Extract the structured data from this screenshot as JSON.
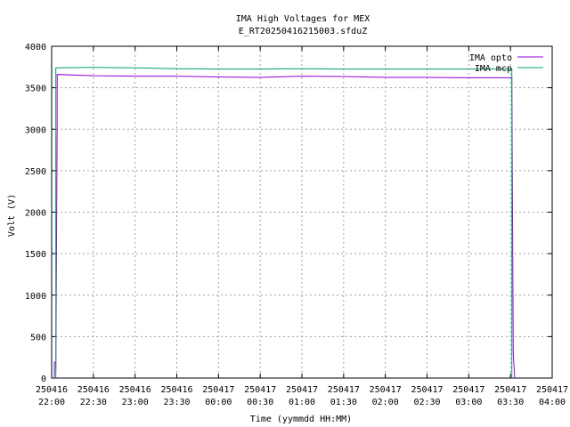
{
  "chart_data": {
    "type": "line",
    "title": "IMA High Voltages for MEX",
    "subtitle": "E_RT20250416215003.sfduZ",
    "xlabel": "Time (yymmdd HH:MM)",
    "ylabel": "Volt (V)",
    "xlim": [
      "2025-04-16 22:00",
      "2025-04-17 04:00"
    ],
    "ylim": [
      0,
      4000
    ],
    "grid": true,
    "legend_position": "top-right",
    "y_ticks": [
      0,
      500,
      1000,
      1500,
      2000,
      2500,
      3000,
      3500,
      4000
    ],
    "x_ticks": [
      {
        "date": "250416",
        "time": "22:00",
        "t": "2025-04-16 22:00"
      },
      {
        "date": "250416",
        "time": "22:30",
        "t": "2025-04-16 22:30"
      },
      {
        "date": "250416",
        "time": "23:00",
        "t": "2025-04-16 23:00"
      },
      {
        "date": "250416",
        "time": "23:30",
        "t": "2025-04-16 23:30"
      },
      {
        "date": "250417",
        "time": "00:00",
        "t": "2025-04-17 00:00"
      },
      {
        "date": "250417",
        "time": "00:30",
        "t": "2025-04-17 00:30"
      },
      {
        "date": "250417",
        "time": "01:00",
        "t": "2025-04-17 01:00"
      },
      {
        "date": "250417",
        "time": "01:30",
        "t": "2025-04-17 01:30"
      },
      {
        "date": "250417",
        "time": "02:00",
        "t": "2025-04-17 02:00"
      },
      {
        "date": "250417",
        "time": "02:30",
        "t": "2025-04-17 02:30"
      },
      {
        "date": "250417",
        "time": "03:00",
        "t": "2025-04-17 03:00"
      },
      {
        "date": "250417",
        "time": "03:30",
        "t": "2025-04-17 03:30"
      },
      {
        "date": "250417",
        "time": "04:00",
        "t": "2025-04-17 04:00"
      }
    ],
    "series": [
      {
        "name": "IMA opto",
        "color": "#9400d3",
        "points": [
          [
            "2025-04-16 22:02",
            0
          ],
          [
            "2025-04-16 22:02",
            190
          ],
          [
            "2025-04-16 22:03",
            190
          ],
          [
            "2025-04-16 22:03",
            100
          ],
          [
            "2025-04-16 22:04",
            3100
          ],
          [
            "2025-04-16 22:04",
            3660
          ],
          [
            "2025-04-16 22:30",
            3645
          ],
          [
            "2025-04-16 23:00",
            3640
          ],
          [
            "2025-04-16 23:30",
            3640
          ],
          [
            "2025-04-17 00:00",
            3630
          ],
          [
            "2025-04-17 00:30",
            3625
          ],
          [
            "2025-04-17 01:00",
            3640
          ],
          [
            "2025-04-17 01:30",
            3635
          ],
          [
            "2025-04-17 02:00",
            3625
          ],
          [
            "2025-04-17 02:30",
            3625
          ],
          [
            "2025-04-17 03:00",
            3620
          ],
          [
            "2025-04-17 03:28",
            3620
          ],
          [
            "2025-04-17 03:31",
            3620
          ],
          [
            "2025-04-17 03:32",
            300
          ],
          [
            "2025-04-17 03:33",
            0
          ]
        ]
      },
      {
        "name": "IMA mcp",
        "color": "#009e73",
        "points": [
          [
            "2025-04-16 22:03",
            0
          ],
          [
            "2025-04-16 22:03",
            3740
          ],
          [
            "2025-04-16 22:30",
            3745
          ],
          [
            "2025-04-16 23:00",
            3740
          ],
          [
            "2025-04-16 23:30",
            3730
          ],
          [
            "2025-04-17 00:00",
            3725
          ],
          [
            "2025-04-17 00:30",
            3725
          ],
          [
            "2025-04-17 01:00",
            3730
          ],
          [
            "2025-04-17 01:30",
            3725
          ],
          [
            "2025-04-17 02:00",
            3725
          ],
          [
            "2025-04-17 02:30",
            3725
          ],
          [
            "2025-04-17 03:00",
            3725
          ],
          [
            "2025-04-17 03:31",
            3725
          ],
          [
            "2025-04-17 03:31",
            0
          ]
        ]
      }
    ]
  }
}
